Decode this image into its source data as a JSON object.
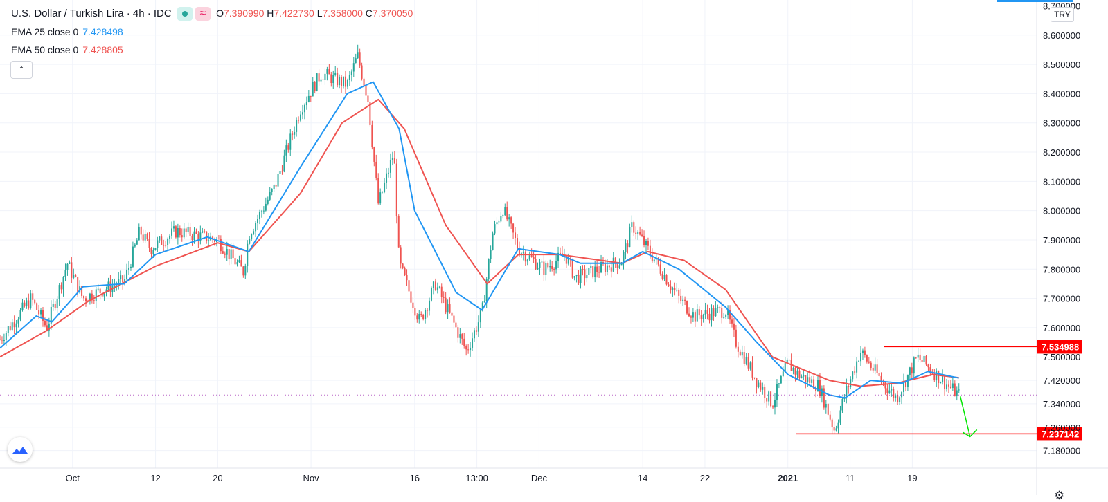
{
  "legend": {
    "symbol_title": "U.S. Dollar / Turkish Lira · 4h · IDC",
    "pill_b_glyph": "≈",
    "open_label": "O",
    "open": "7.390990",
    "high_label": "H",
    "high": "7.422730",
    "low_label": "L",
    "low": "7.358000",
    "close_label": "C",
    "close": "7.370050"
  },
  "indicators": [
    {
      "name": "EMA 25 close 0",
      "value": "7.428498",
      "color": "#2196f3"
    },
    {
      "name": "EMA 50 close 0",
      "value": "7.428805",
      "color": "#ef5350"
    }
  ],
  "collapse_glyph": "⌃",
  "currency_button": "TRY",
  "settings_glyph": "⚙",
  "colors": {
    "up": "#26a69a",
    "down": "#ef5350",
    "ema25": "#2196f3",
    "ema50": "#ef5350",
    "level_line": "#ff0000",
    "arrow": "#00e600",
    "grid": "#f0f3fa",
    "axis_text": "#131722"
  },
  "chart_data": {
    "type": "candlestick",
    "y_ticks": [
      "8.700000",
      "8.600000",
      "8.500000",
      "8.400000",
      "8.300000",
      "8.200000",
      "8.100000",
      "8.000000",
      "7.900000",
      "7.800000",
      "7.700000",
      "7.600000",
      "7.500000",
      "7.420000",
      "7.340000",
      "7.260000",
      "7.180000"
    ],
    "x_ticks": [
      "Oct",
      "12",
      "20",
      "Nov",
      "16",
      "13:00",
      "Dec",
      "14",
      "22",
      "2021",
      "11",
      "19"
    ],
    "x_tick_pos": [
      0.07,
      0.15,
      0.21,
      0.3,
      0.4,
      0.46,
      0.52,
      0.62,
      0.68,
      0.76,
      0.82,
      0.88
    ],
    "ylim": [
      7.12,
      8.72
    ],
    "price_levels": [
      {
        "label": "7.534988",
        "value": 7.534988
      },
      {
        "label": "7.237142",
        "value": 7.237142
      }
    ],
    "current_price": 7.37005,
    "close_path": [
      {
        "x": 0.0,
        "y": 7.56
      },
      {
        "x": 0.03,
        "y": 7.7
      },
      {
        "x": 0.045,
        "y": 7.6
      },
      {
        "x": 0.065,
        "y": 7.82
      },
      {
        "x": 0.08,
        "y": 7.7
      },
      {
        "x": 0.12,
        "y": 7.76
      },
      {
        "x": 0.135,
        "y": 7.93
      },
      {
        "x": 0.145,
        "y": 7.87
      },
      {
        "x": 0.17,
        "y": 7.93
      },
      {
        "x": 0.21,
        "y": 7.9
      },
      {
        "x": 0.235,
        "y": 7.79
      },
      {
        "x": 0.24,
        "y": 7.92
      },
      {
        "x": 0.265,
        "y": 8.08
      },
      {
        "x": 0.29,
        "y": 8.35
      },
      {
        "x": 0.31,
        "y": 8.47
      },
      {
        "x": 0.335,
        "y": 8.43
      },
      {
        "x": 0.345,
        "y": 8.53
      },
      {
        "x": 0.355,
        "y": 8.38
      },
      {
        "x": 0.365,
        "y": 8.02
      },
      {
        "x": 0.38,
        "y": 8.2
      },
      {
        "x": 0.385,
        "y": 7.82
      },
      {
        "x": 0.405,
        "y": 7.62
      },
      {
        "x": 0.42,
        "y": 7.75
      },
      {
        "x": 0.45,
        "y": 7.52
      },
      {
        "x": 0.465,
        "y": 7.65
      },
      {
        "x": 0.475,
        "y": 7.92
      },
      {
        "x": 0.485,
        "y": 8.01
      },
      {
        "x": 0.5,
        "y": 7.87
      },
      {
        "x": 0.525,
        "y": 7.8
      },
      {
        "x": 0.545,
        "y": 7.85
      },
      {
        "x": 0.555,
        "y": 7.77
      },
      {
        "x": 0.6,
        "y": 7.83
      },
      {
        "x": 0.61,
        "y": 7.95
      },
      {
        "x": 0.63,
        "y": 7.84
      },
      {
        "x": 0.655,
        "y": 7.7
      },
      {
        "x": 0.67,
        "y": 7.64
      },
      {
        "x": 0.7,
        "y": 7.66
      },
      {
        "x": 0.71,
        "y": 7.55
      },
      {
        "x": 0.73,
        "y": 7.42
      },
      {
        "x": 0.745,
        "y": 7.34
      },
      {
        "x": 0.76,
        "y": 7.48
      },
      {
        "x": 0.77,
        "y": 7.44
      },
      {
        "x": 0.79,
        "y": 7.4
      },
      {
        "x": 0.805,
        "y": 7.25
      },
      {
        "x": 0.815,
        "y": 7.37
      },
      {
        "x": 0.83,
        "y": 7.52
      },
      {
        "x": 0.85,
        "y": 7.42
      },
      {
        "x": 0.865,
        "y": 7.36
      },
      {
        "x": 0.885,
        "y": 7.5
      },
      {
        "x": 0.9,
        "y": 7.45
      },
      {
        "x": 0.915,
        "y": 7.4
      },
      {
        "x": 0.925,
        "y": 7.37
      }
    ],
    "ema25_path": [
      {
        "x": 0.0,
        "y": 7.53
      },
      {
        "x": 0.035,
        "y": 7.64
      },
      {
        "x": 0.05,
        "y": 7.62
      },
      {
        "x": 0.08,
        "y": 7.74
      },
      {
        "x": 0.12,
        "y": 7.75
      },
      {
        "x": 0.15,
        "y": 7.85
      },
      {
        "x": 0.2,
        "y": 7.91
      },
      {
        "x": 0.24,
        "y": 7.86
      },
      {
        "x": 0.29,
        "y": 8.15
      },
      {
        "x": 0.335,
        "y": 8.4
      },
      {
        "x": 0.36,
        "y": 8.44
      },
      {
        "x": 0.385,
        "y": 8.28
      },
      {
        "x": 0.4,
        "y": 8.0
      },
      {
        "x": 0.44,
        "y": 7.72
      },
      {
        "x": 0.465,
        "y": 7.66
      },
      {
        "x": 0.5,
        "y": 7.87
      },
      {
        "x": 0.54,
        "y": 7.85
      },
      {
        "x": 0.56,
        "y": 7.82
      },
      {
        "x": 0.6,
        "y": 7.82
      },
      {
        "x": 0.62,
        "y": 7.86
      },
      {
        "x": 0.655,
        "y": 7.8
      },
      {
        "x": 0.7,
        "y": 7.67
      },
      {
        "x": 0.73,
        "y": 7.55
      },
      {
        "x": 0.76,
        "y": 7.44
      },
      {
        "x": 0.8,
        "y": 7.37
      },
      {
        "x": 0.815,
        "y": 7.36
      },
      {
        "x": 0.84,
        "y": 7.42
      },
      {
        "x": 0.87,
        "y": 7.41
      },
      {
        "x": 0.895,
        "y": 7.45
      },
      {
        "x": 0.925,
        "y": 7.428
      }
    ],
    "ema50_path": [
      {
        "x": 0.0,
        "y": 7.5
      },
      {
        "x": 0.045,
        "y": 7.59
      },
      {
        "x": 0.085,
        "y": 7.69
      },
      {
        "x": 0.15,
        "y": 7.81
      },
      {
        "x": 0.21,
        "y": 7.89
      },
      {
        "x": 0.24,
        "y": 7.86
      },
      {
        "x": 0.29,
        "y": 8.06
      },
      {
        "x": 0.33,
        "y": 8.3
      },
      {
        "x": 0.365,
        "y": 8.38
      },
      {
        "x": 0.39,
        "y": 8.28
      },
      {
        "x": 0.43,
        "y": 7.95
      },
      {
        "x": 0.47,
        "y": 7.75
      },
      {
        "x": 0.5,
        "y": 7.85
      },
      {
        "x": 0.54,
        "y": 7.85
      },
      {
        "x": 0.6,
        "y": 7.82
      },
      {
        "x": 0.625,
        "y": 7.86
      },
      {
        "x": 0.66,
        "y": 7.83
      },
      {
        "x": 0.7,
        "y": 7.73
      },
      {
        "x": 0.745,
        "y": 7.5
      },
      {
        "x": 0.8,
        "y": 7.42
      },
      {
        "x": 0.83,
        "y": 7.4
      },
      {
        "x": 0.865,
        "y": 7.41
      },
      {
        "x": 0.9,
        "y": 7.44
      },
      {
        "x": 0.925,
        "y": 7.429
      }
    ]
  }
}
